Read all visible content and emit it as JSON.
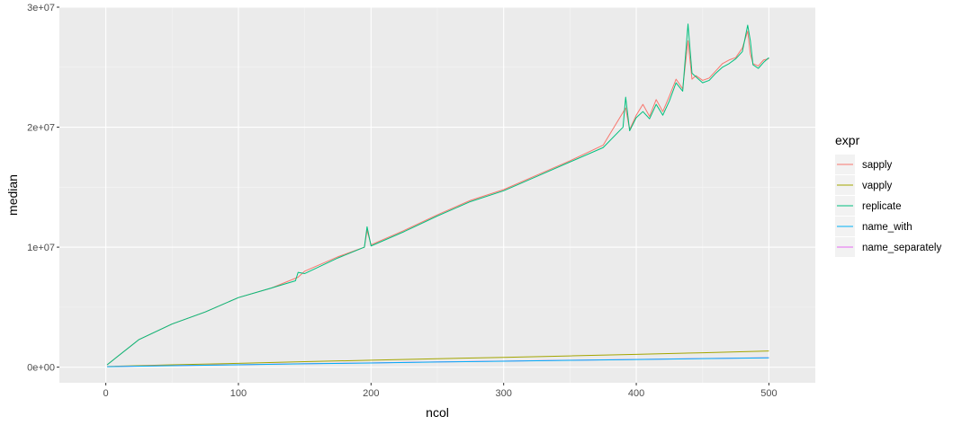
{
  "chart_data": {
    "type": "line",
    "title": "",
    "xlabel": "ncol",
    "ylabel": "median",
    "xlim": [
      -35,
      535
    ],
    "ylim": [
      -1300000,
      30000000
    ],
    "x_ticks": [
      0,
      100,
      200,
      300,
      400,
      500
    ],
    "x_tick_labels": [
      "0",
      "100",
      "200",
      "300",
      "400",
      "500"
    ],
    "y_ticks": [
      0,
      10000000,
      20000000,
      30000000
    ],
    "y_tick_labels": [
      "0e+00",
      "1e+07",
      "2e+07",
      "3e+07"
    ],
    "grid": true,
    "legend": {
      "title": "expr",
      "position": "right"
    },
    "series": [
      {
        "name": "sapply",
        "color": "#F8766D",
        "x": [
          1,
          25,
          50,
          75,
          100,
          125,
          145,
          150,
          175,
          195,
          197,
          200,
          225,
          250,
          275,
          300,
          325,
          350,
          375,
          392,
          395,
          400,
          405,
          410,
          415,
          420,
          425,
          430,
          435,
          439,
          442,
          445,
          450,
          455,
          460,
          465,
          470,
          475,
          480,
          484,
          486,
          488,
          492,
          496,
          500
        ],
        "y": [
          200000,
          2300000,
          3600000,
          4600000,
          5800000,
          6600000,
          7500000,
          8000000,
          9200000,
          10000000,
          11400000,
          10200000,
          11400000,
          12700000,
          13900000,
          14800000,
          16000000,
          17200000,
          18500000,
          21600000,
          19800000,
          21000000,
          21900000,
          20900000,
          22300000,
          21300000,
          22600000,
          24000000,
          23200000,
          27200000,
          24000000,
          24300000,
          23900000,
          24100000,
          24700000,
          25300000,
          25600000,
          25800000,
          26600000,
          28000000,
          26100000,
          25300000,
          25100000,
          25600000,
          25700000
        ]
      },
      {
        "name": "vapply",
        "color": "#A3A500",
        "x": [
          1,
          50,
          100,
          150,
          200,
          250,
          300,
          350,
          400,
          450,
          500
        ],
        "y": [
          60000,
          200000,
          320000,
          460000,
          580000,
          700000,
          820000,
          940000,
          1070000,
          1200000,
          1350000
        ]
      },
      {
        "name": "replicate",
        "color": "#00BF7D",
        "x": [
          1,
          25,
          50,
          75,
          100,
          125,
          143,
          145,
          150,
          175,
          195,
          197,
          200,
          225,
          250,
          275,
          300,
          325,
          350,
          375,
          390,
          392,
          395,
          400,
          405,
          410,
          415,
          420,
          425,
          430,
          435,
          439,
          442,
          445,
          450,
          455,
          460,
          465,
          470,
          475,
          480,
          484,
          486,
          488,
          492,
          496,
          500
        ],
        "y": [
          200000,
          2300000,
          3600000,
          4600000,
          5800000,
          6600000,
          7200000,
          7900000,
          7800000,
          9100000,
          10000000,
          11700000,
          10100000,
          11300000,
          12600000,
          13800000,
          14700000,
          15900000,
          17100000,
          18300000,
          20000000,
          22500000,
          19700000,
          20800000,
          21300000,
          20700000,
          21900000,
          21000000,
          22200000,
          23700000,
          23000000,
          28600000,
          24500000,
          24200000,
          23700000,
          23900000,
          24500000,
          25000000,
          25300000,
          25700000,
          26300000,
          28500000,
          27200000,
          25200000,
          24900000,
          25400000,
          25800000
        ]
      },
      {
        "name": "name_with",
        "color": "#00B0F6",
        "x": [
          1,
          50,
          100,
          150,
          200,
          250,
          300,
          350,
          400,
          450,
          500
        ],
        "y": [
          40000,
          120000,
          200000,
          280000,
          350000,
          430000,
          500000,
          570000,
          640000,
          710000,
          780000
        ]
      },
      {
        "name": "name_separately",
        "color": "#E76BF3",
        "x": [
          1,
          50,
          100,
          150,
          200,
          250,
          300,
          350,
          400,
          450,
          500
        ],
        "y": [
          50000,
          130000,
          210000,
          290000,
          360000,
          440000,
          510000,
          580000,
          650000,
          720000,
          790000
        ]
      }
    ]
  }
}
